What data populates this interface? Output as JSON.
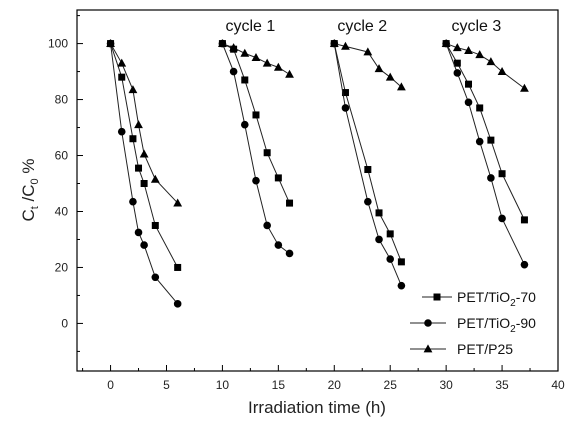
{
  "chart_data": {
    "type": "scatter",
    "xlabel": "Irradiation time (h)",
    "ylabel": {
      "main": "C",
      "sub1": "t",
      "mid": " /C",
      "sub2": "0",
      "tail": " %"
    },
    "xlim": [
      -3,
      40
    ],
    "ylim": [
      -17,
      112
    ],
    "xticks": [
      0,
      5,
      10,
      15,
      20,
      25,
      30,
      35,
      40
    ],
    "yticks": [
      0,
      20,
      40,
      60,
      80,
      100
    ],
    "annotations": [
      {
        "text": "cycle 1",
        "x": 12.5,
        "y": 104.5
      },
      {
        "text": "cycle 2",
        "x": 22.5,
        "y": 104.5
      },
      {
        "text": "cycle 3",
        "x": 32.7,
        "y": 104.5
      }
    ],
    "legend": {
      "placement": "bottom-right"
    },
    "series": [
      {
        "name": {
          "pre": "PET/TiO",
          "sub": "2",
          "post": "-70"
        },
        "marker": "square",
        "segments": [
          [
            [
              0,
              100
            ],
            [
              1,
              88
            ],
            [
              2,
              66
            ],
            [
              2.5,
              55.5
            ],
            [
              3,
              50
            ],
            [
              4,
              35
            ],
            [
              6,
              20
            ]
          ],
          [
            [
              10,
              100
            ],
            [
              11,
              98
            ],
            [
              12,
              87
            ],
            [
              13,
              74.5
            ],
            [
              14,
              61
            ],
            [
              15,
              52
            ],
            [
              16,
              43
            ]
          ],
          [
            [
              20,
              100
            ],
            [
              21,
              82.5
            ],
            [
              23,
              55
            ],
            [
              24,
              39.5
            ],
            [
              25,
              32
            ],
            [
              26,
              22
            ]
          ],
          [
            [
              30,
              100
            ],
            [
              31,
              93
            ],
            [
              32,
              85.5
            ],
            [
              33,
              77
            ],
            [
              34,
              65.5
            ],
            [
              35,
              53.5
            ],
            [
              37,
              37
            ]
          ]
        ]
      },
      {
        "name": {
          "pre": "PET/TiO",
          "sub": "2",
          "post": "-90"
        },
        "marker": "circle",
        "segments": [
          [
            [
              0,
              100
            ],
            [
              1,
              68.5
            ],
            [
              2,
              43.5
            ],
            [
              2.5,
              32.5
            ],
            [
              3,
              28
            ],
            [
              4,
              16.5
            ],
            [
              6,
              7
            ]
          ],
          [
            [
              10,
              100
            ],
            [
              11,
              90
            ],
            [
              12,
              71
            ],
            [
              13,
              51
            ],
            [
              14,
              35
            ],
            [
              15,
              28
            ],
            [
              16,
              25
            ]
          ],
          [
            [
              20,
              100
            ],
            [
              21,
              77
            ],
            [
              23,
              43.5
            ],
            [
              24,
              30
            ],
            [
              25,
              23
            ],
            [
              26,
              13.5
            ]
          ],
          [
            [
              30,
              100
            ],
            [
              31,
              89.5
            ],
            [
              32,
              79
            ],
            [
              33,
              65
            ],
            [
              34,
              52
            ],
            [
              35,
              37.5
            ],
            [
              37,
              21
            ]
          ]
        ]
      },
      {
        "name": {
          "pre": "PET/P25",
          "sub": "",
          "post": ""
        },
        "marker": "triangle",
        "segments": [
          [
            [
              0,
              100
            ],
            [
              1,
              93
            ],
            [
              2,
              83.5
            ],
            [
              2.5,
              71
            ],
            [
              3,
              60.5
            ],
            [
              4,
              51.5
            ],
            [
              6,
              43
            ]
          ],
          [
            [
              10,
              100
            ],
            [
              11,
              98.5
            ],
            [
              12,
              96.5
            ],
            [
              13,
              95
            ],
            [
              14,
              93
            ],
            [
              15,
              91.5
            ],
            [
              16,
              89
            ]
          ],
          [
            [
              20,
              100
            ],
            [
              21,
              99
            ],
            [
              23,
              97
            ],
            [
              24,
              91
            ],
            [
              25,
              88
            ],
            [
              26,
              84.5
            ]
          ],
          [
            [
              30,
              100
            ],
            [
              31,
              98.5
            ],
            [
              32,
              97.5
            ],
            [
              33,
              96
            ],
            [
              34,
              93.5
            ],
            [
              35,
              90
            ],
            [
              37,
              84
            ]
          ]
        ]
      }
    ]
  }
}
